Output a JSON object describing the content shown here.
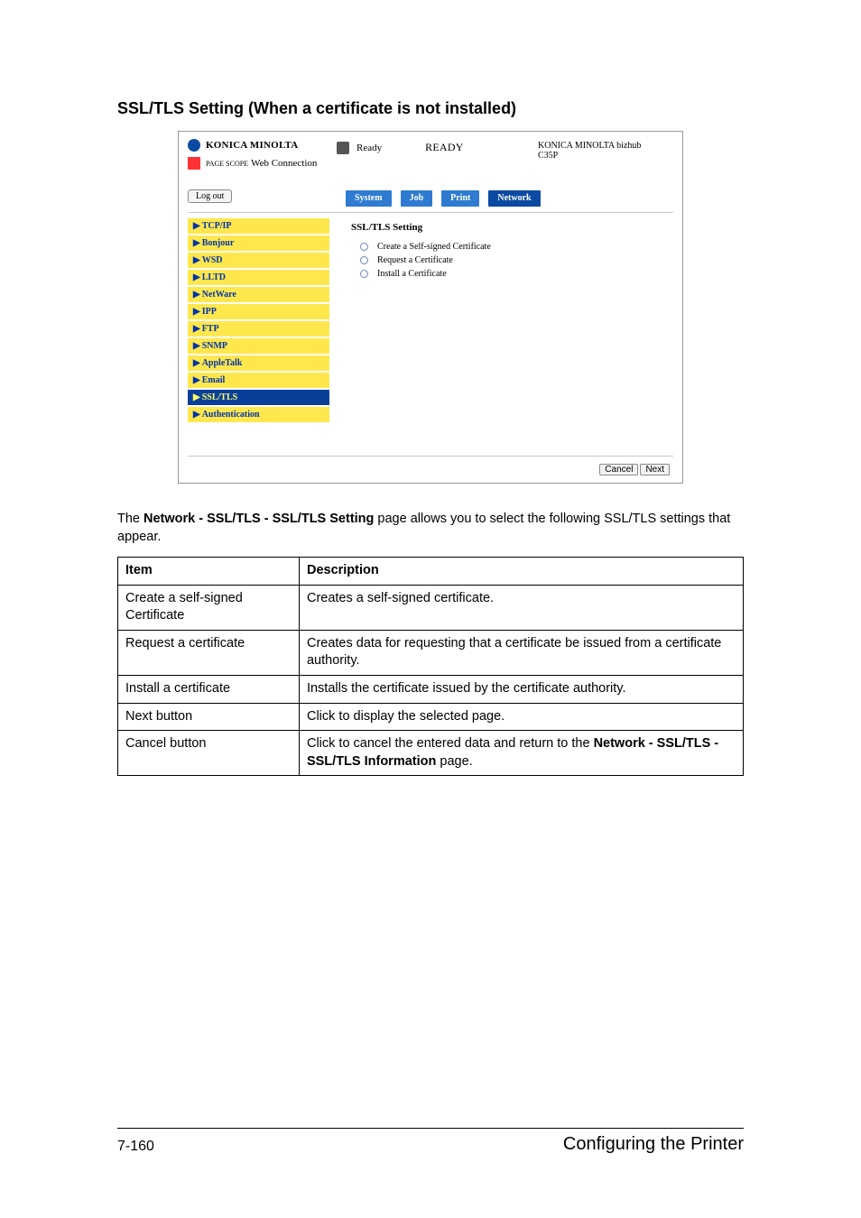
{
  "heading": "SSL/TLS Setting (When a certificate is not installed)",
  "screenshot": {
    "brand": "KONICA MINOLTA",
    "webconn_prefix": "PAGE\nSCOPE",
    "webconn": "Web Connection",
    "ready_label": "Ready",
    "ready_big": "READY",
    "device_line1": "KONICA MINOLTA bizhub",
    "device_line2": "C35P",
    "logout": "Log out",
    "tabs": {
      "system": "System",
      "job": "Job",
      "print": "Print",
      "network": "Network"
    },
    "nav": {
      "tcpip": "TCP/IP",
      "bonjour": "Bonjour",
      "wsd": "WSD",
      "lltd": "LLTD",
      "netware": "NetWare",
      "ipp": "IPP",
      "ftp": "FTP",
      "snmp": "SNMP",
      "appletalk": "AppleTalk",
      "email": "Email",
      "ssltls": "SSL/TLS",
      "auth": "Authentication"
    },
    "content_title": "SSL/TLS Setting",
    "options": {
      "opt1": "Create a Self-signed Certificate",
      "opt2": "Request a Certificate",
      "opt3": "Install a Certificate"
    },
    "footer": {
      "cancel": "Cancel",
      "next": "Next"
    }
  },
  "paragraph": {
    "pre": "The ",
    "bold": "Network - SSL/TLS - SSL/TLS Setting",
    "post": " page allows you to select the following SSL/TLS settings that appear."
  },
  "table": {
    "head_item": "Item",
    "head_desc": "Description",
    "rows": [
      {
        "item": "Create a self-signed Certificate",
        "desc": "Creates a self-signed certificate."
      },
      {
        "item": "Request a certificate",
        "desc": "Creates data for requesting that a certificate be issued from a certificate authority."
      },
      {
        "item": "Install a certificate",
        "desc": "Installs the certificate issued by the certificate authority."
      },
      {
        "item": "Next button",
        "desc": "Click to display the selected page."
      },
      {
        "item": "Cancel button",
        "desc_pre": "Click to cancel the entered data and return to the ",
        "desc_bold": "Network - SSL/TLS - SSL/TLS Information",
        "desc_post": " page."
      }
    ]
  },
  "footer": {
    "left": "7-160",
    "right": "Configuring the Printer"
  }
}
